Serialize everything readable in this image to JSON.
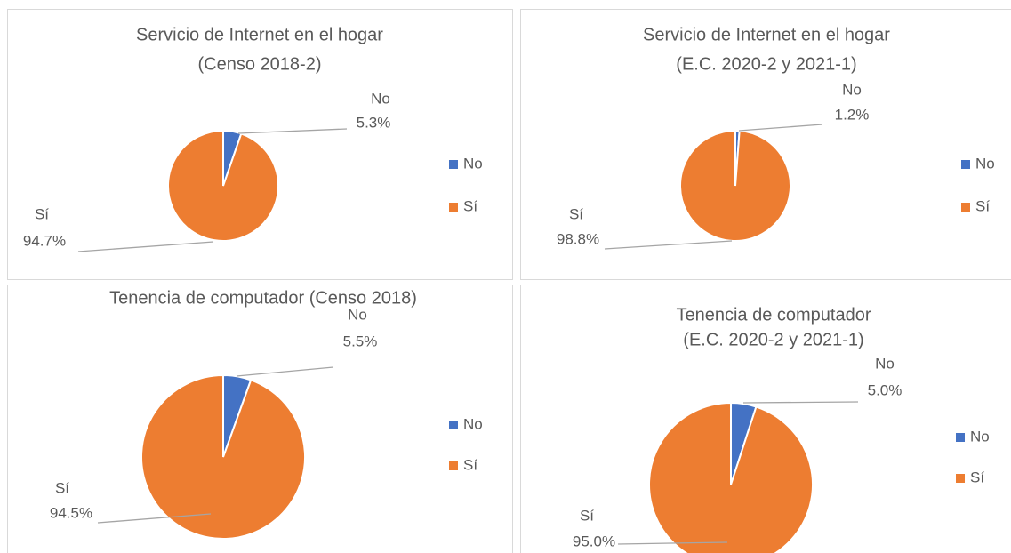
{
  "chart_data": [
    {
      "type": "pie",
      "title": [
        "Servicio de Internet en el hogar",
        "(Censo 2018-2)"
      ],
      "categories": [
        "No",
        "Sí"
      ],
      "values": [
        5.3,
        94.7
      ],
      "value_labels": [
        "5.3%",
        "94.7%"
      ],
      "colors": [
        "#4472c4",
        "#ed7d31"
      ],
      "legend": "right"
    },
    {
      "type": "pie",
      "title": [
        "Servicio de Internet en el hogar",
        "(E.C. 2020-2 y 2021-1)"
      ],
      "categories": [
        "No",
        "Sí"
      ],
      "values": [
        1.2,
        98.8
      ],
      "value_labels": [
        "1.2%",
        "98.8%"
      ],
      "colors": [
        "#4472c4",
        "#ed7d31"
      ],
      "legend": "right"
    },
    {
      "type": "pie",
      "title": [
        "Tenencia de computador (Censo 2018)"
      ],
      "categories": [
        "No",
        "Sí"
      ],
      "values": [
        5.5,
        94.5
      ],
      "value_labels": [
        "5.5%",
        "94.5%"
      ],
      "colors": [
        "#4472c4",
        "#ed7d31"
      ],
      "legend": "right"
    },
    {
      "type": "pie",
      "title": [
        "Tenencia de computador",
        "(E.C. 2020-2 y 2021-1)"
      ],
      "categories": [
        "No",
        "Sí"
      ],
      "values": [
        5.0,
        95.0
      ],
      "value_labels": [
        "5.0%",
        "95.0%"
      ],
      "colors": [
        "#4472c4",
        "#ed7d31"
      ],
      "legend": "right"
    }
  ]
}
